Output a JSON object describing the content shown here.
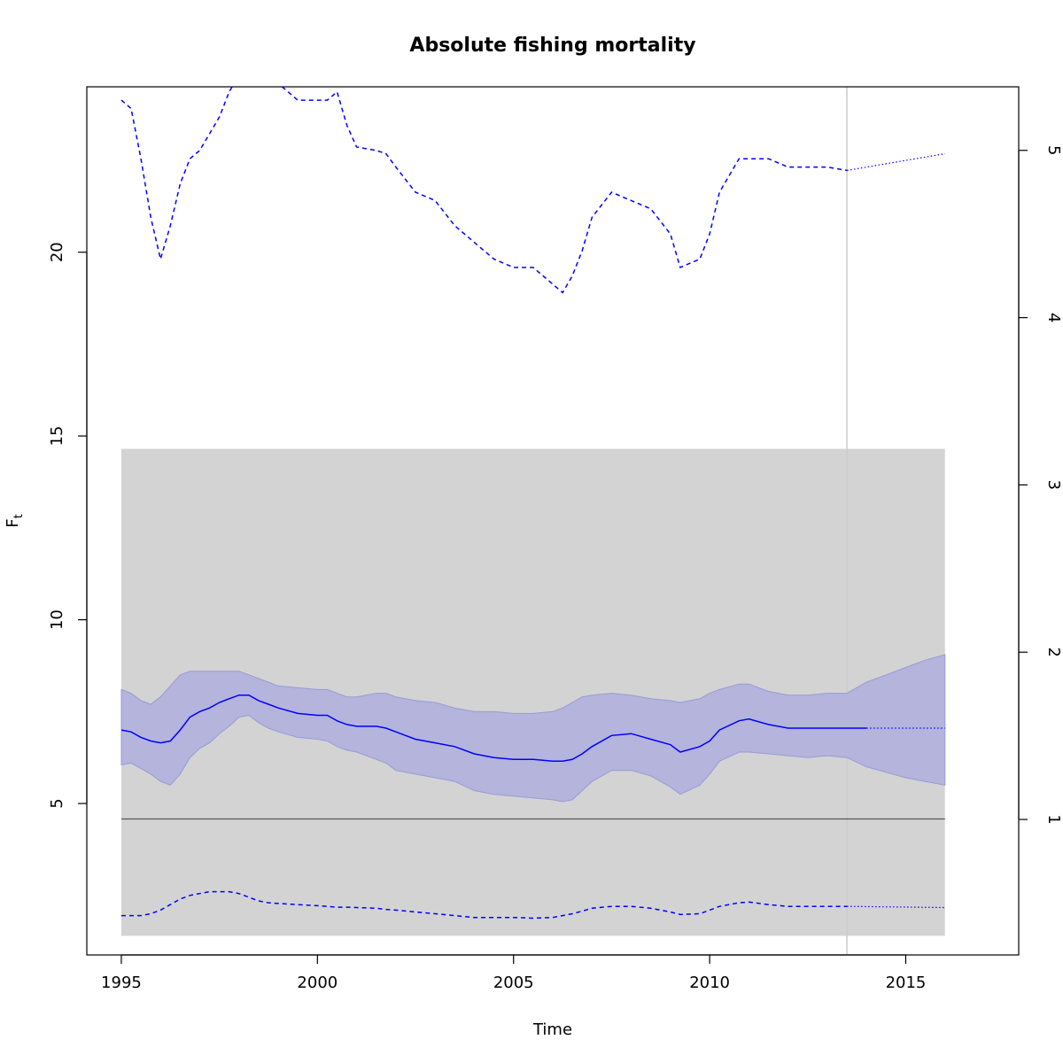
{
  "chart_data": {
    "type": "line",
    "title": "Absolute fishing mortality",
    "xlabel": "Time",
    "ylabel_main": "F",
    "ylabel_sub": "t",
    "xlim": [
      1994.12,
      2017.88
    ],
    "ylim_left": [
      0.88,
      24.5
    ],
    "ylim_right": [
      0.19,
      5.38
    ],
    "x_ticks": [
      1995,
      2000,
      2005,
      2010,
      2015
    ],
    "y_ticks_left": [
      5,
      10,
      15,
      20
    ],
    "y_ticks_right": [
      1,
      2,
      3,
      4,
      5
    ],
    "colors": {
      "series": "#0000ff",
      "band_fill": "#b4b4dc",
      "background_band": "#d3d3d3",
      "reference_line": "#555555",
      "vline": "#cccccc"
    },
    "background_band": {
      "x": [
        1995,
        2016
      ],
      "y": [
        1.4,
        14.65
      ]
    },
    "reference_line_y": 4.58,
    "vline_x": 2013.5,
    "ci_band": {
      "x": [
        1995,
        1995.25,
        1995.5,
        1995.75,
        1996,
        1996.25,
        1996.5,
        1996.75,
        1997,
        1997.25,
        1997.5,
        1997.75,
        1998,
        1998.25,
        1998.5,
        1998.75,
        1999,
        1999.5,
        2000,
        2000.25,
        2000.5,
        2000.75,
        2001,
        2001.5,
        2001.75,
        2002,
        2002.5,
        2003,
        2003.5,
        2004,
        2004.5,
        2005,
        2005.5,
        2006,
        2006.25,
        2006.5,
        2006.75,
        2007,
        2007.5,
        2008,
        2008.5,
        2009,
        2009.25,
        2009.75,
        2010,
        2010.25,
        2010.75,
        2011,
        2011.5,
        2012,
        2012.5,
        2013,
        2013.5,
        2014,
        2014.5,
        2015,
        2015.5,
        2016
      ],
      "upper": [
        8.1,
        8.0,
        7.8,
        7.7,
        7.9,
        8.2,
        8.5,
        8.6,
        8.6,
        8.6,
        8.6,
        8.6,
        8.6,
        8.5,
        8.4,
        8.3,
        8.2,
        8.15,
        8.1,
        8.1,
        8.0,
        7.9,
        7.9,
        8.0,
        8.0,
        7.9,
        7.8,
        7.75,
        7.6,
        7.5,
        7.5,
        7.45,
        7.45,
        7.5,
        7.6,
        7.75,
        7.9,
        7.95,
        8.0,
        7.95,
        7.85,
        7.8,
        7.75,
        7.85,
        8.0,
        8.1,
        8.25,
        8.25,
        8.05,
        7.95,
        7.95,
        8.0,
        8.0,
        8.3,
        8.5,
        8.7,
        8.9,
        9.05
      ],
      "lower": [
        6.05,
        6.1,
        5.95,
        5.8,
        5.6,
        5.5,
        5.8,
        6.25,
        6.5,
        6.65,
        6.9,
        7.1,
        7.35,
        7.4,
        7.2,
        7.05,
        6.95,
        6.8,
        6.75,
        6.7,
        6.55,
        6.45,
        6.4,
        6.2,
        6.1,
        5.9,
        5.8,
        5.7,
        5.6,
        5.35,
        5.25,
        5.2,
        5.15,
        5.1,
        5.05,
        5.1,
        5.35,
        5.6,
        5.9,
        5.9,
        5.75,
        5.45,
        5.25,
        5.5,
        5.8,
        6.15,
        6.4,
        6.4,
        6.35,
        6.3,
        6.25,
        6.3,
        6.25,
        6.0,
        5.85,
        5.7,
        5.6,
        5.5
      ]
    },
    "series": [
      {
        "line_style": "solid",
        "x": [
          1995,
          1995.25,
          1995.5,
          1995.75,
          1996,
          1996.25,
          1996.5,
          1996.75,
          1997,
          1997.25,
          1997.5,
          1997.75,
          1998,
          1998.25,
          1998.5,
          1998.75,
          1999,
          1999.5,
          2000,
          2000.25,
          2000.5,
          2000.75,
          2001,
          2001.5,
          2001.75,
          2002,
          2002.5,
          2003,
          2003.5,
          2004,
          2004.5,
          2005,
          2005.5,
          2006,
          2006.25,
          2006.5,
          2006.75,
          2007,
          2007.5,
          2008,
          2008.5,
          2009,
          2009.25,
          2009.75,
          2010,
          2010.25,
          2010.75,
          2011,
          2011.5,
          2012,
          2012.5,
          2013,
          2013.5,
          2014
        ],
        "y": [
          7.0,
          6.95,
          6.8,
          6.7,
          6.65,
          6.7,
          7.0,
          7.35,
          7.5,
          7.6,
          7.75,
          7.85,
          7.95,
          7.95,
          7.8,
          7.7,
          7.6,
          7.45,
          7.4,
          7.4,
          7.25,
          7.15,
          7.1,
          7.1,
          7.05,
          6.95,
          6.75,
          6.65,
          6.55,
          6.35,
          6.25,
          6.2,
          6.2,
          6.15,
          6.15,
          6.2,
          6.35,
          6.55,
          6.85,
          6.9,
          6.75,
          6.6,
          6.4,
          6.55,
          6.7,
          7.0,
          7.25,
          7.3,
          7.15,
          7.05,
          7.05,
          7.05,
          7.05,
          7.05
        ]
      },
      {
        "line_style": "dotted",
        "x": [
          2014,
          2016
        ],
        "y": [
          7.05,
          7.05
        ]
      },
      {
        "line_style": "dashed",
        "x": [
          1995,
          1995.25,
          1995.5,
          1995.75,
          1996,
          1996.25,
          1996.5,
          1996.75,
          1997,
          1997.25,
          1997.5,
          1997.75,
          1998,
          1998.25,
          1998.5,
          1998.75,
          1999,
          1999.5,
          2000,
          2000.25,
          2000.5,
          2000.75,
          2001,
          2001.5,
          2001.75,
          2002,
          2002.5,
          2003,
          2003.5,
          2004,
          2004.5,
          2005,
          2005.5,
          2006,
          2006.25,
          2006.5,
          2006.75,
          2007,
          2007.5,
          2008,
          2008.5,
          2009,
          2009.25,
          2009.75,
          2010,
          2010.25,
          2010.75,
          2011,
          2011.5,
          2012,
          2012.5,
          2013,
          2013.5
        ],
        "y": [
          1.95,
          1.95,
          1.95,
          2.0,
          2.1,
          2.25,
          2.4,
          2.5,
          2.55,
          2.6,
          2.6,
          2.6,
          2.55,
          2.45,
          2.35,
          2.3,
          2.28,
          2.25,
          2.22,
          2.2,
          2.18,
          2.18,
          2.17,
          2.15,
          2.12,
          2.1,
          2.05,
          2.0,
          1.95,
          1.9,
          1.9,
          1.9,
          1.88,
          1.9,
          1.95,
          2.0,
          2.07,
          2.15,
          2.2,
          2.2,
          2.15,
          2.05,
          1.98,
          2.0,
          2.1,
          2.2,
          2.3,
          2.32,
          2.25,
          2.2,
          2.2,
          2.2,
          2.2
        ]
      },
      {
        "line_style": "dotted",
        "x": [
          2013.5,
          2016
        ],
        "y": [
          2.2,
          2.17
        ]
      },
      {
        "axis": "right",
        "line_style": "dashed",
        "x": [
          1995,
          1995.25,
          1995.5,
          1995.75,
          1996,
          1996.25,
          1996.5,
          1996.75,
          1997,
          1997.25,
          1997.5,
          1997.75,
          1998,
          1998.25,
          1998.5,
          1998.75,
          1999,
          1999.5,
          2000,
          2000.25,
          2000.5,
          2000.75,
          2001,
          2001.5,
          2001.75,
          2002,
          2002.5,
          2003,
          2003.5,
          2004,
          2004.5,
          2005,
          2005.5,
          2006,
          2006.25,
          2006.5,
          2006.75,
          2007,
          2007.5,
          2008,
          2008.5,
          2009,
          2009.25,
          2009.75,
          2010,
          2010.25,
          2010.75,
          2011,
          2011.5,
          2012,
          2012.5,
          2013,
          2013.5
        ],
        "y": [
          5.3,
          5.25,
          4.95,
          4.6,
          4.35,
          4.55,
          4.8,
          4.95,
          5.0,
          5.1,
          5.2,
          5.35,
          5.45,
          5.5,
          5.5,
          5.45,
          5.4,
          5.3,
          5.3,
          5.3,
          5.35,
          5.15,
          5.02,
          5.0,
          4.98,
          4.9,
          4.75,
          4.7,
          4.55,
          4.45,
          4.35,
          4.3,
          4.3,
          4.2,
          4.15,
          4.25,
          4.4,
          4.6,
          4.75,
          4.7,
          4.65,
          4.5,
          4.3,
          4.35,
          4.5,
          4.75,
          4.95,
          4.95,
          4.95,
          4.9,
          4.9,
          4.9,
          4.88
        ]
      },
      {
        "axis": "right",
        "line_style": "dotted",
        "x": [
          2013.5,
          2016
        ],
        "y": [
          4.88,
          4.98
        ]
      }
    ]
  }
}
